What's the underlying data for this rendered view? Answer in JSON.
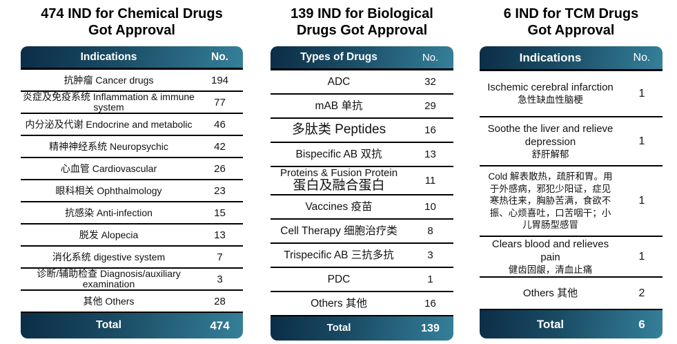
{
  "colors": {
    "background": "#ffffff",
    "header_gradient_start": "#0c2d47",
    "header_gradient_end": "#35809a",
    "row_border": "#000000",
    "header_text": "#ffffff",
    "body_text": "#111111"
  },
  "tables": [
    {
      "title_line1": "474 IND for Chemical Drugs",
      "title_line2": "Got Approval",
      "header": {
        "label": "Indications",
        "no": "No."
      },
      "rows": [
        {
          "label": "抗肿瘤 Cancer drugs",
          "value": "194"
        },
        {
          "label": "炎症及免疫系统 Inflammation & immune system",
          "value": "77"
        },
        {
          "label": "内分泌及代谢 Endocrine and metabolic",
          "value": "46"
        },
        {
          "label": "精神神经系统 Neuropsychic",
          "value": "42"
        },
        {
          "label": "心血管 Cardiovascular",
          "value": "26"
        },
        {
          "label": "眼科相关 Ophthalmology",
          "value": "23"
        },
        {
          "label": "抗感染 Anti-infection",
          "value": "15"
        },
        {
          "label": "脱发 Alopecia",
          "value": "13"
        },
        {
          "label": "消化系统 digestive system",
          "value": "7"
        },
        {
          "label": "诊断/辅助检查 Diagnosis/auxiliary examination",
          "value": "3"
        },
        {
          "label": "其他 Others",
          "value": "28"
        }
      ],
      "total": {
        "label": "Total",
        "value": "474"
      }
    },
    {
      "title_line1": "139 IND for Biological",
      "title_line2": "Drugs Got Approval",
      "header": {
        "label": "Types of Drugs",
        "no": "No."
      },
      "rows": [
        {
          "label": "ADC",
          "value": "32"
        },
        {
          "label": "mAB 单抗",
          "value": "29"
        },
        {
          "label": "多肽类 Peptides",
          "value": "16"
        },
        {
          "label": "Bispecific AB 双抗",
          "value": "13"
        },
        {
          "line1": "Proteins & Fusion Protein",
          "line2": "蛋白及融合蛋白",
          "value": "11"
        },
        {
          "label": "Vaccines 疫苗",
          "value": "10"
        },
        {
          "label": "Cell Therapy 细胞治疗类",
          "value": "8"
        },
        {
          "label": "Trispecific AB 三抗多抗",
          "value": "3"
        },
        {
          "label": "PDC",
          "value": "1"
        },
        {
          "label": "Others 其他",
          "value": "16"
        }
      ],
      "total": {
        "label": "Total",
        "value": "139"
      }
    },
    {
      "title_line1": "6 IND for TCM Drugs",
      "title_line2": "Got Approval",
      "header": {
        "label": "Indications",
        "no": "No."
      },
      "rows": [
        {
          "line1": "Ischemic cerebral infarction",
          "line2": "急性缺血性脑梗",
          "value": "1"
        },
        {
          "line1": "Soothe the liver and relieve depression",
          "line2": "舒肝解郁",
          "value": "1"
        },
        {
          "label": "Cold 解表散热，疏肝和胃。用于外感病，邪犯少阳证，症见寒热往来，胸胁苦满，食欲不振、心烦喜吐，口苦咽干；小儿胃肠型感冒",
          "value": "1"
        },
        {
          "line1": "Clears blood and relieves pain",
          "line2": "健齿固龈，清血止痛",
          "value": "1"
        },
        {
          "label": "Others 其他",
          "value": "2"
        }
      ],
      "total": {
        "label": "Total",
        "value": "6"
      }
    }
  ]
}
